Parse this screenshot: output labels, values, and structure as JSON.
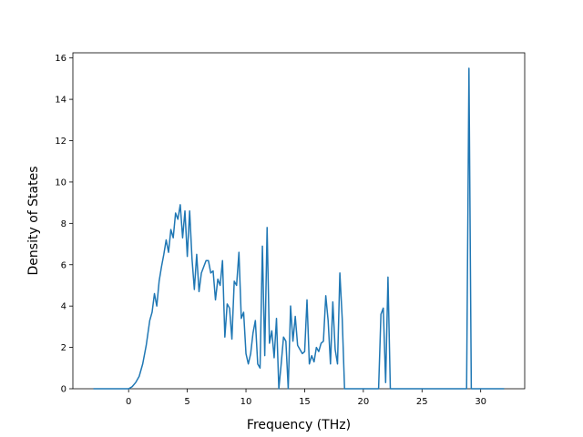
{
  "chart_data": {
    "type": "line",
    "title": "",
    "xlabel": "Frequency (THz)",
    "ylabel": "Density of States",
    "xlim": [
      -4.75,
      33.75
    ],
    "ylim": [
      0,
      16.25
    ],
    "xticks": [
      0,
      5,
      10,
      15,
      20,
      25,
      30
    ],
    "yticks": [
      0,
      2,
      4,
      6,
      8,
      10,
      12,
      14,
      16
    ],
    "grid": false,
    "legend": "none",
    "series": [
      {
        "color": "#1f77b4",
        "x": [
          -3.0,
          0.0,
          0.3,
          0.6,
          0.9,
          1.2,
          1.5,
          1.8,
          2.0,
          2.2,
          2.4,
          2.6,
          2.8,
          3.0,
          3.2,
          3.4,
          3.6,
          3.8,
          4.0,
          4.2,
          4.4,
          4.6,
          4.8,
          5.0,
          5.2,
          5.4,
          5.6,
          5.8,
          6.0,
          6.2,
          6.4,
          6.6,
          6.8,
          7.0,
          7.2,
          7.4,
          7.6,
          7.8,
          8.0,
          8.2,
          8.4,
          8.6,
          8.8,
          9.0,
          9.2,
          9.4,
          9.6,
          9.8,
          10.0,
          10.2,
          10.4,
          10.6,
          10.8,
          11.0,
          11.2,
          11.4,
          11.6,
          11.8,
          12.0,
          12.2,
          12.4,
          12.6,
          12.8,
          13.0,
          13.2,
          13.4,
          13.6,
          13.8,
          14.0,
          14.2,
          14.4,
          14.6,
          14.8,
          15.0,
          15.2,
          15.4,
          15.6,
          15.8,
          16.0,
          16.2,
          16.4,
          16.6,
          16.8,
          17.0,
          17.2,
          17.4,
          17.6,
          17.8,
          18.0,
          18.2,
          18.4,
          18.6,
          21.3,
          21.5,
          21.7,
          21.9,
          22.1,
          22.3,
          28.8,
          29.0,
          29.2,
          32.0
        ],
        "y": [
          0,
          0,
          0.1,
          0.3,
          0.6,
          1.2,
          2.1,
          3.3,
          3.7,
          4.6,
          4.0,
          5.2,
          5.9,
          6.5,
          7.2,
          6.6,
          7.7,
          7.3,
          8.5,
          8.2,
          8.9,
          7.3,
          8.6,
          6.4,
          8.6,
          6.3,
          4.8,
          6.5,
          4.7,
          5.6,
          5.9,
          6.2,
          6.2,
          5.6,
          5.7,
          4.3,
          5.3,
          5.0,
          6.2,
          2.5,
          4.1,
          3.9,
          2.4,
          5.2,
          5.0,
          6.6,
          3.4,
          3.7,
          1.7,
          1.2,
          1.7,
          2.7,
          3.3,
          1.2,
          1.0,
          6.9,
          1.6,
          7.8,
          2.2,
          2.8,
          1.5,
          3.4,
          0,
          1.2,
          2.5,
          2.3,
          0,
          4.0,
          2.3,
          3.5,
          2.1,
          1.9,
          1.7,
          1.8,
          4.3,
          1.2,
          1.6,
          1.3,
          2.0,
          1.8,
          2.2,
          2.3,
          4.5,
          3.3,
          1.2,
          4.2,
          1.9,
          1.2,
          5.6,
          3.4,
          0,
          0,
          0,
          3.6,
          3.9,
          0.3,
          5.4,
          0,
          0,
          15.5,
          0,
          0
        ]
      }
    ]
  }
}
